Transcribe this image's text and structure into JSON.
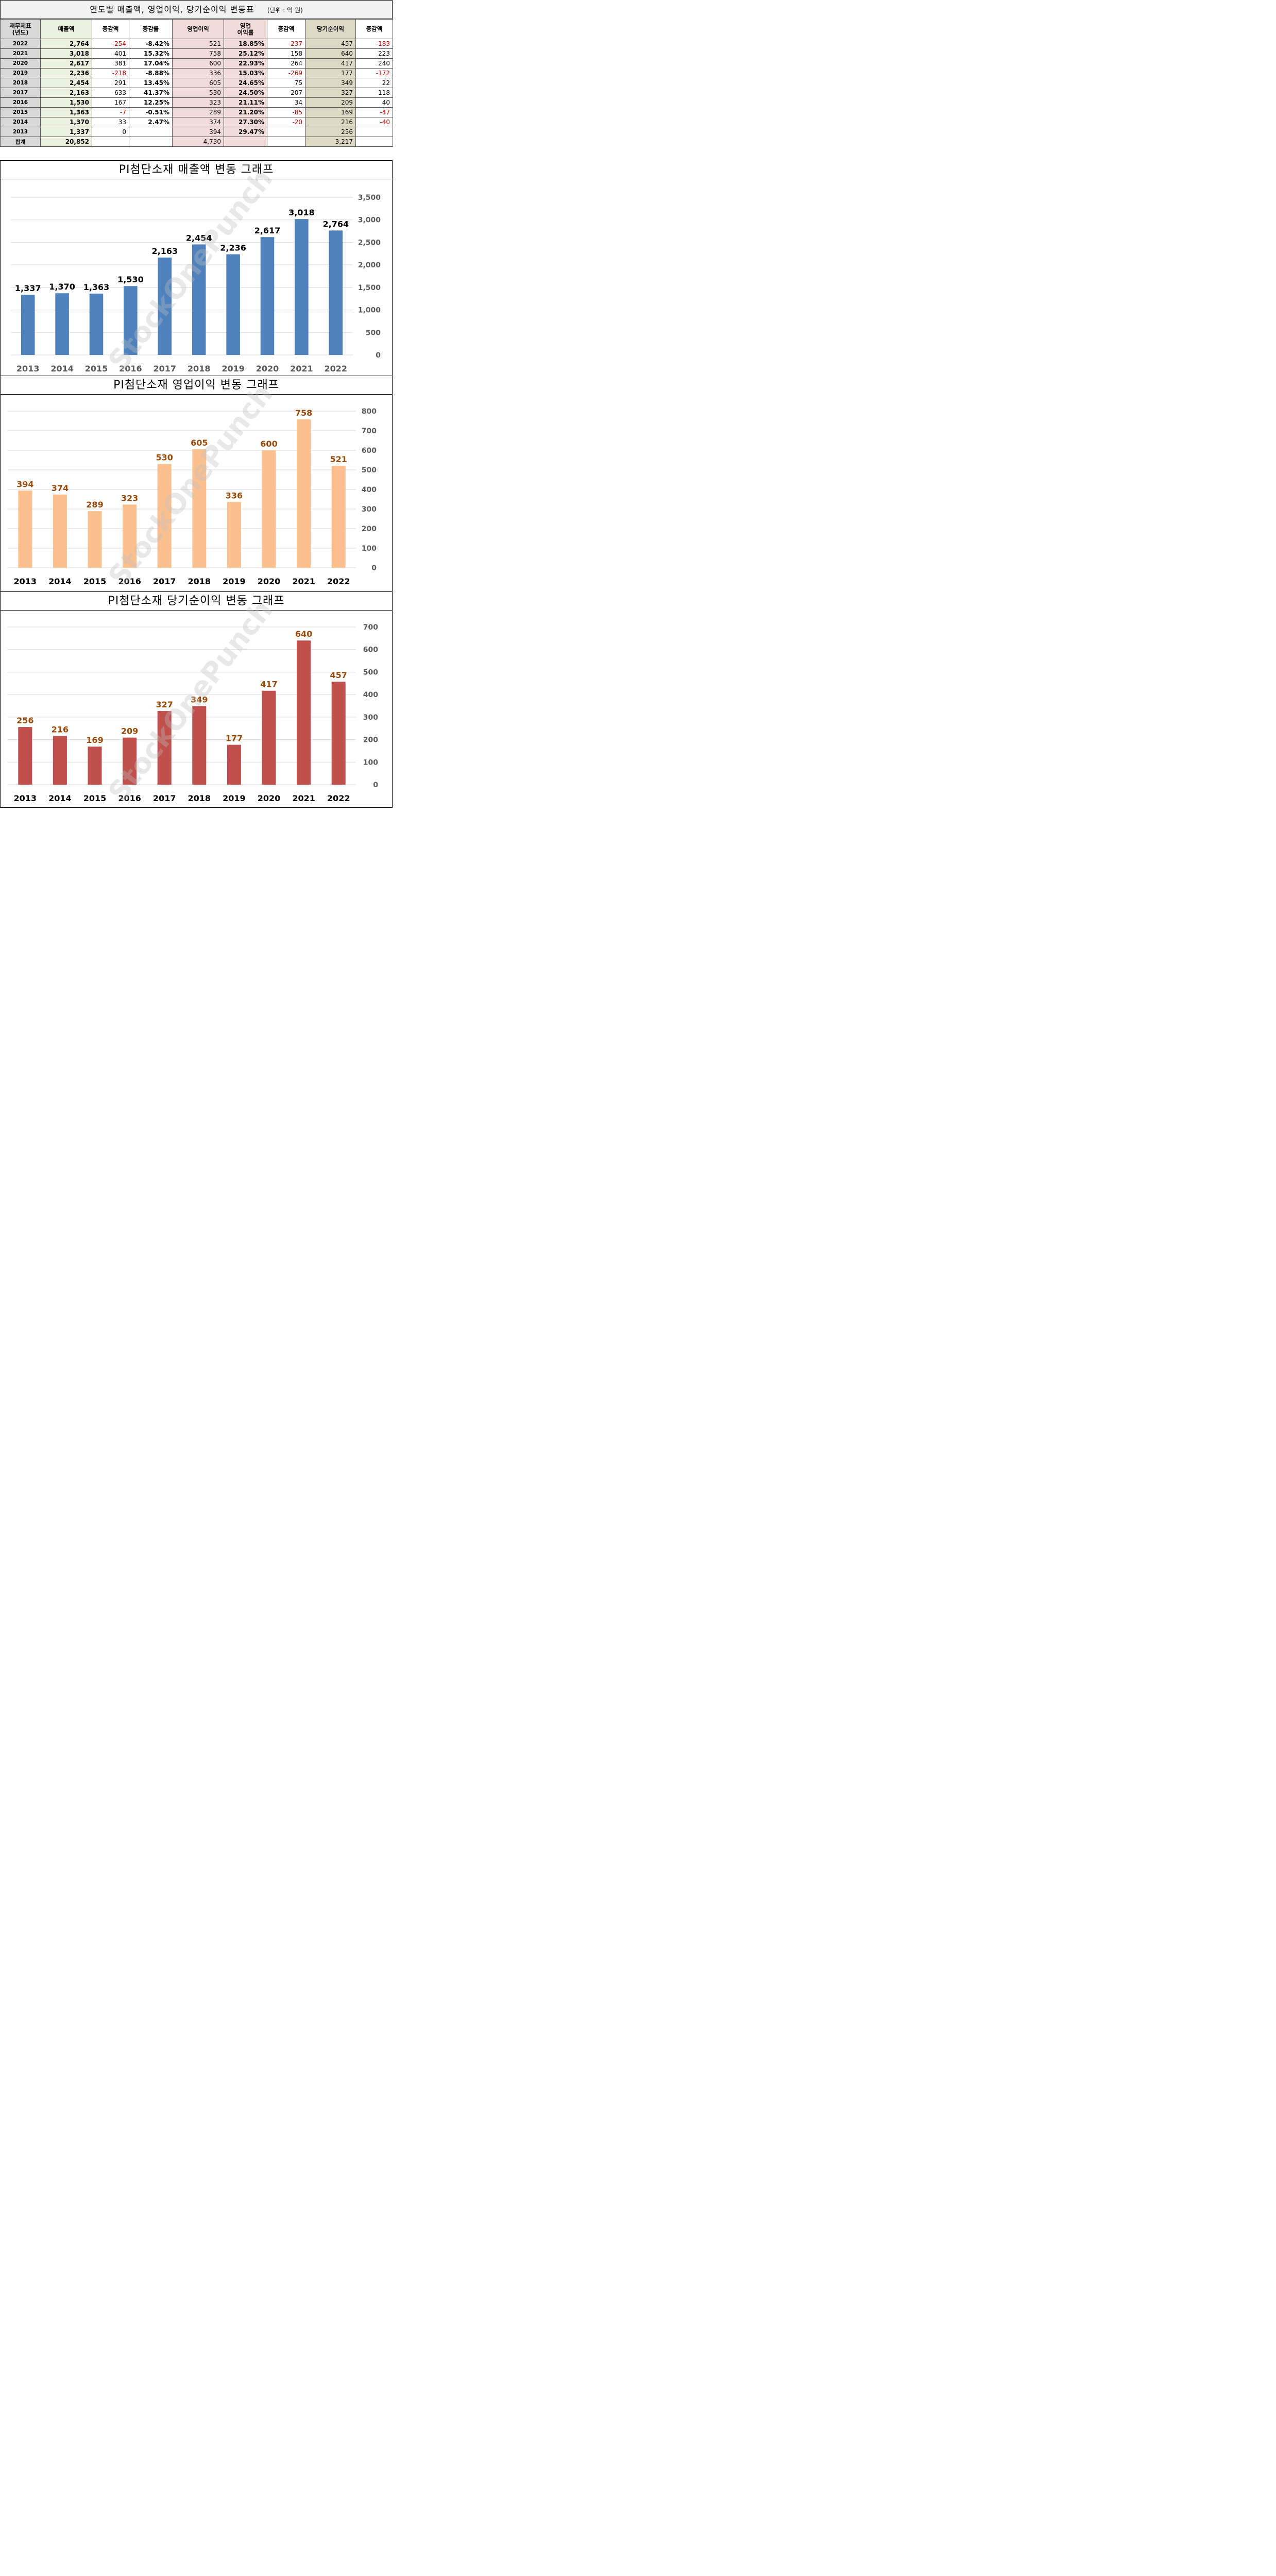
{
  "table": {
    "title": "연도별 매출액, 영업이익, 당기순이익 변동표",
    "unit": "(단위 : 억 원)",
    "headers": [
      "재무제표\n(년도)",
      "매출액",
      "증감액",
      "증감률",
      "영업이익",
      "영업\n이익률",
      "증감액",
      "당기순이익",
      "증감액"
    ],
    "rows": [
      [
        "2022",
        "2,764",
        "-254",
        "-8.42%",
        "521",
        "18.85%",
        "-237",
        "457",
        "-183"
      ],
      [
        "2021",
        "3,018",
        "401",
        "15.32%",
        "758",
        "25.12%",
        "158",
        "640",
        "223"
      ],
      [
        "2020",
        "2,617",
        "381",
        "17.04%",
        "600",
        "22.93%",
        "264",
        "417",
        "240"
      ],
      [
        "2019",
        "2,236",
        "-218",
        "-8.88%",
        "336",
        "15.03%",
        "-269",
        "177",
        "-172"
      ],
      [
        "2018",
        "2,454",
        "291",
        "13.45%",
        "605",
        "24.65%",
        "75",
        "349",
        "22"
      ],
      [
        "2017",
        "2,163",
        "633",
        "41.37%",
        "530",
        "24.50%",
        "207",
        "327",
        "118"
      ],
      [
        "2016",
        "1,530",
        "167",
        "12.25%",
        "323",
        "21.11%",
        "34",
        "209",
        "40"
      ],
      [
        "2015",
        "1,363",
        "-7",
        "-0.51%",
        "289",
        "21.20%",
        "-85",
        "169",
        "-47"
      ],
      [
        "2014",
        "1,370",
        "33",
        "2.47%",
        "374",
        "27.30%",
        "-20",
        "216",
        "-40"
      ],
      [
        "2013",
        "1,337",
        "0",
        "",
        "394",
        "29.47%",
        "",
        "256",
        ""
      ],
      [
        "합계",
        "20,852",
        "",
        "",
        "4,730",
        "",
        "",
        "3,217",
        ""
      ]
    ],
    "colors": {
      "green": "#ebf1de",
      "pink": "#f2dcdb",
      "tan": "#ddd9c4",
      "year": "#d9d9d9",
      "negative": "#c00000"
    }
  },
  "watermark": "StockOnePunch",
  "chart_data": [
    {
      "type": "bar",
      "title": "PI첨단소재 매출액 변동 그래프",
      "categories": [
        "2013",
        "2014",
        "2015",
        "2016",
        "2017",
        "2018",
        "2019",
        "2020",
        "2021",
        "2022"
      ],
      "values": [
        1337,
        1370,
        1363,
        1530,
        2163,
        2454,
        2236,
        2617,
        3018,
        2764
      ],
      "labels": [
        "1,337",
        "1,370",
        "1,363",
        "1,530",
        "2,163",
        "2,454",
        "2,236",
        "2,617",
        "3,018",
        "2,764"
      ],
      "ylim": [
        0,
        3500
      ],
      "yticks": [
        "0",
        "500",
        "1,000",
        "1,500",
        "2,000",
        "2,500",
        "3,000",
        "3,500"
      ],
      "y_axis_side": "right",
      "grid": true,
      "bar_color": "#4f81bd",
      "label_color": "#000000"
    },
    {
      "type": "bar",
      "title": "PI첨단소재 영업이익 변동 그래프",
      "categories": [
        "2013",
        "2014",
        "2015",
        "2016",
        "2017",
        "2018",
        "2019",
        "2020",
        "2021",
        "2022"
      ],
      "values": [
        394,
        374,
        289,
        323,
        530,
        605,
        336,
        600,
        758,
        521
      ],
      "labels": [
        "394",
        "374",
        "289",
        "323",
        "530",
        "605",
        "336",
        "600",
        "758",
        "521"
      ],
      "ylim": [
        0,
        800
      ],
      "yticks": [
        "0",
        "100",
        "200",
        "300",
        "400",
        "500",
        "600",
        "700",
        "800"
      ],
      "y_axis_side": "right",
      "grid": true,
      "bar_color": "#fac090",
      "label_color": "#984807"
    },
    {
      "type": "bar",
      "title": "PI첨단소재 당기순이익 변동 그래프",
      "categories": [
        "2013",
        "2014",
        "2015",
        "2016",
        "2017",
        "2018",
        "2019",
        "2020",
        "2021",
        "2022"
      ],
      "values": [
        256,
        216,
        169,
        209,
        327,
        349,
        177,
        417,
        640,
        457
      ],
      "labels": [
        "256",
        "216",
        "169",
        "209",
        "327",
        "349",
        "177",
        "417",
        "640",
        "457"
      ],
      "ylim": [
        0,
        700
      ],
      "yticks": [
        "0",
        "100",
        "200",
        "300",
        "400",
        "500",
        "600",
        "700"
      ],
      "y_axis_side": "right",
      "grid": true,
      "bar_color": "#c0504d",
      "label_color": "#984807"
    }
  ]
}
